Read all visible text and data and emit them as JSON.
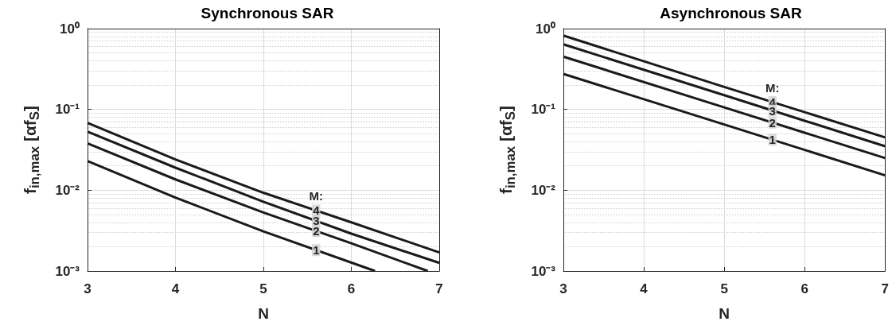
{
  "chart_data": [
    {
      "type": "line",
      "title": "Synchronous SAR",
      "xlabel": "N",
      "ylabel": "f$_{in,max}$ [αf$_{S}$]",
      "log": "y",
      "grid": true,
      "marker": "none",
      "line_style": "solid",
      "xlim": [
        3,
        7
      ],
      "xticks": [
        3,
        4,
        5,
        6,
        7
      ],
      "ylim": [
        0.001,
        1
      ],
      "yticks": [
        {
          "value": 0.001,
          "label": "10⁻³"
        },
        {
          "value": 0.01,
          "label": "10⁻²"
        },
        {
          "value": 0.1,
          "label": "10⁻¹"
        },
        {
          "value": 1,
          "label": "10⁰"
        }
      ],
      "series": [
        {
          "color": "#1a1a1a",
          "x": [
            3,
            4,
            5,
            6,
            7
          ],
          "values": [
            0.068,
            0.024,
            0.0093,
            0.004,
            0.0017
          ]
        },
        {
          "color": "#1a1a1a",
          "x": [
            3,
            4,
            5,
            6,
            7
          ],
          "values": [
            0.053,
            0.019,
            0.0072,
            0.0029,
            0.00126
          ]
        },
        {
          "color": "#1a1a1a",
          "x": [
            3,
            4,
            5,
            6,
            6.87
          ],
          "values": [
            0.038,
            0.0136,
            0.0053,
            0.0022,
            0.001
          ]
        },
        {
          "color": "#1a1a1a",
          "x": [
            3,
            4,
            5,
            6.27
          ],
          "values": [
            0.023,
            0.0081,
            0.0031,
            0.001
          ]
        }
      ],
      "annotations": [
        "M:",
        "4",
        "3",
        "2",
        "1"
      ]
    },
    {
      "type": "line",
      "title": "Asynchronous SAR",
      "xlabel": "N",
      "ylabel": "f$_{in,max}$ [αf$_{S}$]",
      "log": "y",
      "grid": true,
      "marker": "none",
      "line_style": "solid",
      "xlim": [
        3,
        7
      ],
      "xticks": [
        3,
        4,
        5,
        6,
        7
      ],
      "ylim": [
        0.001,
        1
      ],
      "yticks": [
        {
          "value": 0.001,
          "label": "10⁻³"
        },
        {
          "value": 0.01,
          "label": "10⁻²"
        },
        {
          "value": 0.1,
          "label": "10⁻¹"
        },
        {
          "value": 1,
          "label": "10⁰"
        }
      ],
      "series": [
        {
          "color": "#1a1a1a",
          "x": [
            3,
            5,
            7
          ],
          "values": [
            0.82,
            0.19,
            0.045
          ]
        },
        {
          "color": "#1a1a1a",
          "x": [
            3,
            5,
            7
          ],
          "values": [
            0.64,
            0.15,
            0.035
          ]
        },
        {
          "color": "#1a1a1a",
          "x": [
            3,
            5,
            7
          ],
          "values": [
            0.45,
            0.106,
            0.025
          ]
        },
        {
          "color": "#1a1a1a",
          "x": [
            3,
            5,
            7
          ],
          "values": [
            0.275,
            0.065,
            0.0153
          ]
        }
      ],
      "annotations": [
        "M:",
        "4",
        "3",
        "2",
        "1"
      ]
    }
  ]
}
